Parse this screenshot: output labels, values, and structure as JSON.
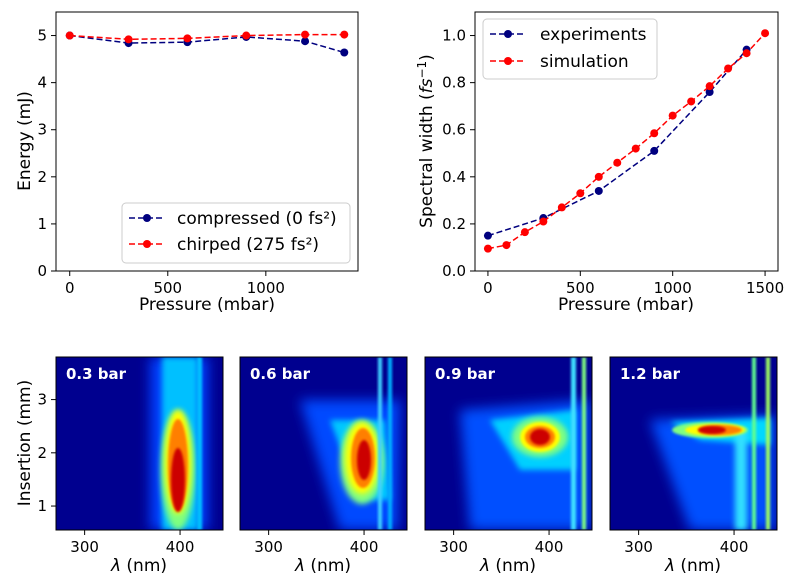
{
  "chart_data": [
    {
      "type": "line",
      "id": "energy",
      "xlabel": "Pressure (mbar)",
      "ylabel": "Energy (mJ)",
      "xlim": [
        -70,
        1470
      ],
      "ylim": [
        0,
        5.5
      ],
      "xticks": [
        0,
        500,
        1000
      ],
      "yticks": [
        0,
        1,
        2,
        3,
        4,
        5
      ],
      "legend_position": "lower-right",
      "series": [
        {
          "name": "compressed (0 fs²)",
          "color": "#00007f",
          "x": [
            0,
            300,
            600,
            900,
            1200,
            1400
          ],
          "y": [
            5.0,
            4.84,
            4.86,
            4.97,
            4.88,
            4.64
          ]
        },
        {
          "name": "chirped (275 fs²)",
          "color": "#ff0000",
          "x": [
            0,
            300,
            600,
            900,
            1200,
            1400
          ],
          "y": [
            5.0,
            4.92,
            4.94,
            5.0,
            5.02,
            5.02
          ]
        }
      ]
    },
    {
      "type": "line",
      "id": "width",
      "xlabel": "Pressure (mbar)",
      "ylabel_main": "Spectral width (",
      "ylabel_unit": "fs",
      "ylabel_exp": "−1",
      "ylabel_close": ")",
      "xlim": [
        -70,
        1570
      ],
      "ylim": [
        0,
        1.1
      ],
      "xticks": [
        0,
        500,
        1000,
        1500
      ],
      "yticks": [
        "0.0",
        "0.2",
        "0.4",
        "0.6",
        "0.8",
        "1.0"
      ],
      "legend_position": "upper-left",
      "series": [
        {
          "name": "experiments",
          "color": "#00007f",
          "x": [
            0,
            300,
            600,
            900,
            1200,
            1400
          ],
          "y": [
            0.15,
            0.225,
            0.34,
            0.51,
            0.76,
            0.94
          ]
        },
        {
          "name": "simulation",
          "color": "#ff0000",
          "x": [
            0,
            100,
            200,
            300,
            400,
            500,
            600,
            700,
            800,
            900,
            1000,
            1100,
            1200,
            1300,
            1400,
            1500
          ],
          "y": [
            0.095,
            0.11,
            0.165,
            0.21,
            0.27,
            0.33,
            0.4,
            0.46,
            0.52,
            0.585,
            0.66,
            0.72,
            0.785,
            0.86,
            0.925,
            1.01
          ]
        }
      ]
    },
    {
      "type": "heatmap",
      "id": "spectra",
      "colormap": "jet",
      "xlabel_symbol": "λ",
      "xlabel_unit": " (nm)",
      "ylabel": "Insertion (mm)",
      "xlim": [
        270,
        445
      ],
      "ylim": [
        0.55,
        3.8
      ],
      "xticks": [
        300,
        400
      ],
      "yticks": [
        1,
        2,
        3
      ],
      "panels": [
        {
          "label": "0.3 bar"
        },
        {
          "label": "0.6 bar"
        },
        {
          "label": "0.9 bar"
        },
        {
          "label": "1.2 bar"
        }
      ]
    }
  ]
}
